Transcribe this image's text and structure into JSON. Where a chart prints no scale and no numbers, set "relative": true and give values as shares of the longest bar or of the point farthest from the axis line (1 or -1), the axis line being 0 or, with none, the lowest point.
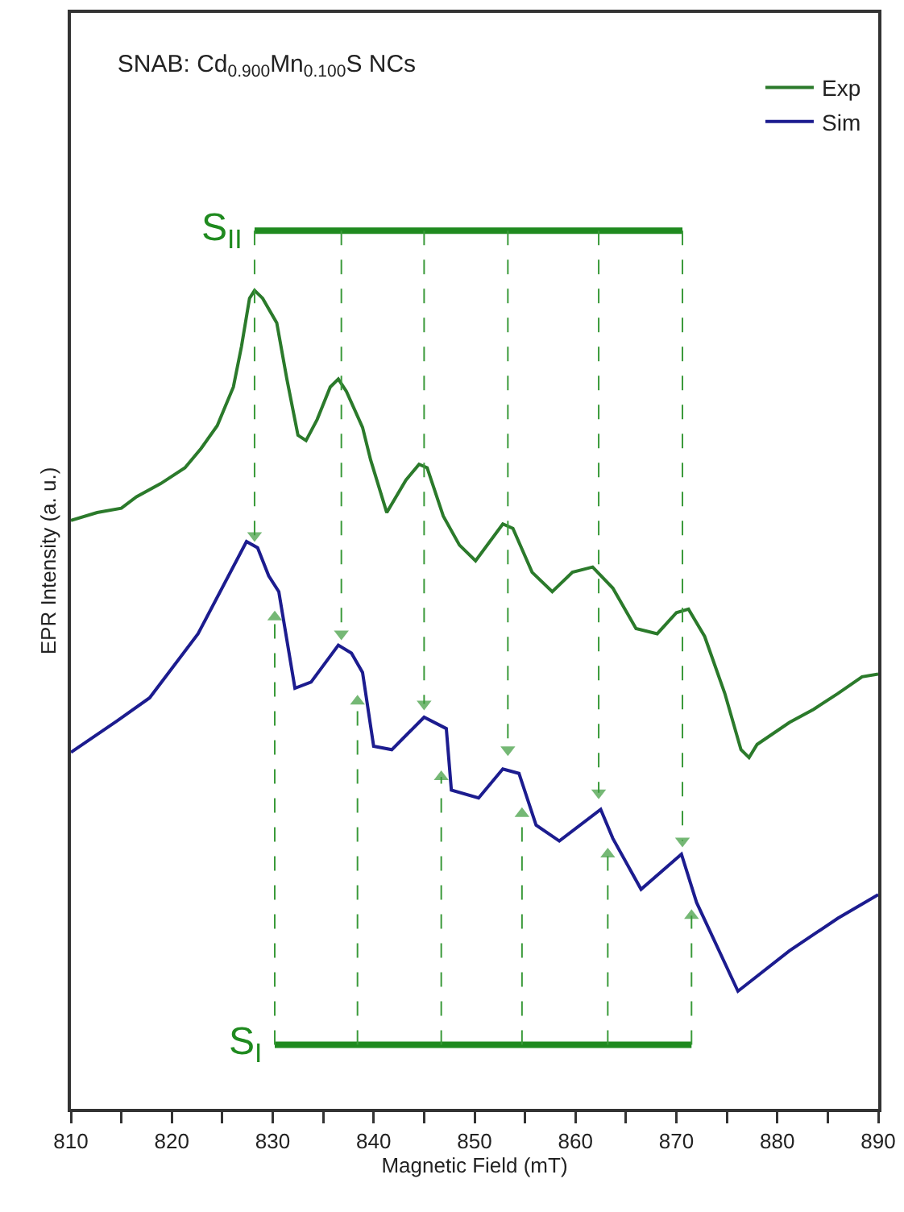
{
  "chart_data": {
    "type": "line",
    "title": "SNAB: Cd$_{0.900}$Mn$_{0.100}$S NCs",
    "xlabel": "Magnetic Field (mT)",
    "ylabel": "EPR Intensity (a. u.)",
    "relative": true,
    "tick_labels": "x",
    "grid": false,
    "legend": "top right",
    "xlim": [
      810,
      890
    ],
    "xticks": [
      810,
      {
        "value": 815,
        "label": null
      },
      820,
      {
        "value": 825,
        "label": null
      },
      830,
      {
        "value": 835,
        "label": null
      },
      840,
      {
        "value": 845,
        "label": null
      },
      850,
      {
        "value": 855,
        "label": null
      },
      860,
      {
        "value": 865,
        "label": null
      },
      870,
      {
        "value": 875,
        "label": null
      },
      880,
      {
        "value": 885,
        "label": null
      },
      890
    ],
    "series": [
      {
        "name": "Exp",
        "color": "#2b7a2b",
        "x": [
          810.0,
          812.6,
          815.0,
          816.5,
          818.9,
          821.3,
          822.9,
          824.5,
          826.1,
          826.9,
          827.7,
          828.2,
          829.0,
          830.4,
          831.4,
          832.5,
          833.3,
          834.4,
          835.7,
          836.5,
          837.3,
          838.9,
          839.7,
          841.3,
          843.2,
          844.5,
          845.3,
          846.9,
          848.5,
          850.1,
          852.8,
          853.8,
          855.7,
          857.7,
          859.7,
          861.7,
          863.7,
          866.0,
          868.1,
          870.0,
          871.2,
          872.8,
          874.8,
          876.4,
          877.2,
          878.0,
          881.2,
          883.6,
          886.0,
          888.4,
          890.0
        ],
        "values": [
          0.67,
          0.679,
          0.684,
          0.697,
          0.712,
          0.73,
          0.752,
          0.778,
          0.822,
          0.868,
          0.923,
          0.932,
          0.923,
          0.895,
          0.831,
          0.767,
          0.761,
          0.785,
          0.822,
          0.831,
          0.817,
          0.776,
          0.739,
          0.679,
          0.716,
          0.734,
          0.73,
          0.675,
          0.642,
          0.624,
          0.666,
          0.661,
          0.611,
          0.589,
          0.611,
          0.617,
          0.593,
          0.547,
          0.541,
          0.565,
          0.569,
          0.538,
          0.473,
          0.409,
          0.4,
          0.415,
          0.44,
          0.455,
          0.473,
          0.492,
          0.495
        ]
      },
      {
        "name": "Sim",
        "color": "#1c1c8f",
        "x": [
          810.0,
          814.6,
          817.8,
          822.6,
          827.4,
          828.5,
          829.6,
          830.6,
          832.2,
          833.8,
          836.5,
          837.8,
          838.9,
          840.0,
          841.8,
          845.0,
          847.2,
          847.7,
          850.4,
          852.8,
          854.4,
          856.1,
          858.4,
          862.5,
          863.7,
          866.5,
          870.5,
          872.0,
          876.1,
          881.2,
          886.0,
          890.0
        ],
        "values": [
          0.406,
          0.442,
          0.468,
          0.541,
          0.646,
          0.639,
          0.607,
          0.589,
          0.479,
          0.486,
          0.528,
          0.519,
          0.497,
          0.413,
          0.409,
          0.446,
          0.433,
          0.363,
          0.354,
          0.387,
          0.382,
          0.323,
          0.305,
          0.341,
          0.308,
          0.25,
          0.29,
          0.235,
          0.134,
          0.18,
          0.217,
          0.244
        ]
      },
      {
        "name": "S$_{II}$",
        "color": "#1f8a1f",
        "x": [
          828.2,
          870.6
        ],
        "values": [
          1.0,
          1.0
        ]
      },
      {
        "name": "S$_{I}$",
        "color": "#1f8a1f",
        "x": [
          830.2,
          871.5
        ],
        "values": [
          0.073,
          0.073
        ]
      },
      {
        "color": "#3a9a3a",
        "line_style": "dashed",
        "marker": "triangle",
        "x": [
          828.2,
          828.2
        ],
        "values": [
          1.0,
          0.653
        ]
      },
      {
        "color": "#3a9a3a",
        "line_style": "dashed",
        "marker": "triangle",
        "x": [
          836.8,
          836.8
        ],
        "values": [
          1.0,
          0.541
        ]
      },
      {
        "color": "#3a9a3a",
        "line_style": "dashed",
        "marker": "triangle",
        "x": [
          845.0,
          845.0
        ],
        "values": [
          1.0,
          0.461
        ]
      },
      {
        "color": "#3a9a3a",
        "line_style": "dashed",
        "marker": "triangle",
        "x": [
          853.3,
          853.3
        ],
        "values": [
          1.0,
          0.409
        ]
      },
      {
        "color": "#3a9a3a",
        "line_style": "dashed",
        "marker": "triangle",
        "x": [
          862.3,
          862.3
        ],
        "values": [
          1.0,
          0.36
        ]
      },
      {
        "color": "#3a9a3a",
        "line_style": "dashed",
        "marker": "triangle",
        "x": [
          870.6,
          870.6
        ],
        "values": [
          1.0,
          0.305
        ]
      },
      {
        "color": "#3a9a3a",
        "line_style": "dashed",
        "marker": "triangle",
        "x": [
          830.2,
          830.2
        ],
        "values": [
          0.073,
          0.56
        ]
      },
      {
        "color": "#3a9a3a",
        "line_style": "dashed",
        "marker": "triangle",
        "x": [
          838.4,
          838.4
        ],
        "values": [
          0.073,
          0.464
        ]
      },
      {
        "color": "#3a9a3a",
        "line_style": "dashed",
        "marker": "triangle",
        "x": [
          846.7,
          846.7
        ],
        "values": [
          0.073,
          0.378
        ]
      },
      {
        "color": "#3a9a3a",
        "line_style": "dashed",
        "marker": "triangle",
        "x": [
          854.7,
          854.7
        ],
        "values": [
          0.073,
          0.336
        ]
      },
      {
        "color": "#3a9a3a",
        "line_style": "dashed",
        "marker": "triangle",
        "x": [
          863.2,
          863.2
        ],
        "values": [
          0.073,
          0.29
        ]
      },
      {
        "color": "#3a9a3a",
        "line_style": "dashed",
        "marker": "triangle",
        "x": [
          871.5,
          871.5
        ],
        "values": [
          0.073,
          0.22
        ]
      }
    ]
  }
}
